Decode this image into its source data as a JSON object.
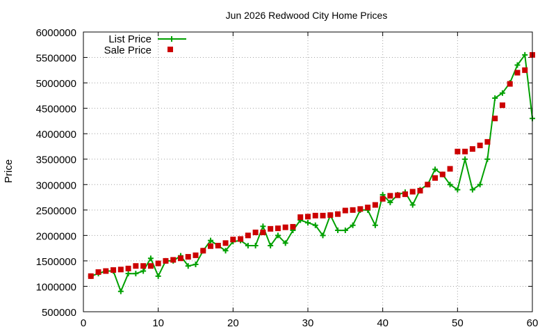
{
  "chart_data": {
    "type": "line",
    "title": "Jun 2026 Redwood City Home Prices",
    "xlabel": "",
    "ylabel": "Price",
    "xlim": [
      0,
      60
    ],
    "ylim": [
      500000,
      6000000
    ],
    "xticks": [
      0,
      10,
      20,
      30,
      40,
      50,
      60
    ],
    "yticks": [
      500000,
      1000000,
      1500000,
      2000000,
      2500000,
      3000000,
      3500000,
      4000000,
      4500000,
      5000000,
      5500000,
      6000000
    ],
    "grid": true,
    "legend_position": "top-left",
    "series": [
      {
        "name": "List Price",
        "style": "line-with-plus-markers",
        "color": "#00a000",
        "x": [
          1,
          2,
          3,
          4,
          5,
          6,
          7,
          8,
          9,
          10,
          11,
          12,
          13,
          14,
          15,
          16,
          17,
          18,
          19,
          20,
          21,
          22,
          23,
          24,
          25,
          26,
          27,
          28,
          29,
          30,
          31,
          32,
          33,
          34,
          35,
          36,
          37,
          38,
          39,
          40,
          41,
          42,
          43,
          44,
          45,
          46,
          47,
          48,
          49,
          50,
          51,
          52,
          53,
          54,
          55,
          56,
          57,
          58,
          59,
          60
        ],
        "y": [
          1200000,
          1250000,
          1300000,
          1300000,
          900000,
          1250000,
          1250000,
          1300000,
          1550000,
          1200000,
          1500000,
          1500000,
          1600000,
          1400000,
          1430000,
          1700000,
          1900000,
          1800000,
          1700000,
          1880000,
          1900000,
          1800000,
          1800000,
          2180000,
          1800000,
          2000000,
          1850000,
          2100000,
          2300000,
          2250000,
          2200000,
          2000000,
          2400000,
          2100000,
          2100000,
          2200000,
          2500000,
          2500000,
          2200000,
          2800000,
          2650000,
          2800000,
          2850000,
          2600000,
          2900000,
          3000000,
          3300000,
          3200000,
          3000000,
          2900000,
          3500000,
          2900000,
          3000000,
          3500000,
          4700000,
          4800000,
          5000000,
          5350000,
          5550000,
          4300000
        ]
      },
      {
        "name": "Sale Price",
        "style": "square-markers",
        "color": "#cc0000",
        "x": [
          1,
          2,
          3,
          4,
          5,
          6,
          7,
          8,
          9,
          10,
          11,
          12,
          13,
          14,
          15,
          16,
          17,
          18,
          19,
          20,
          21,
          22,
          23,
          24,
          25,
          26,
          27,
          28,
          29,
          30,
          31,
          32,
          33,
          34,
          35,
          36,
          37,
          38,
          39,
          40,
          41,
          42,
          43,
          44,
          45,
          46,
          47,
          48,
          49,
          50,
          51,
          52,
          53,
          54,
          55,
          56,
          57,
          58,
          59,
          60
        ],
        "y": [
          1200000,
          1280000,
          1300000,
          1320000,
          1330000,
          1350000,
          1400000,
          1400000,
          1400000,
          1450000,
          1500000,
          1520000,
          1550000,
          1580000,
          1610000,
          1700000,
          1790000,
          1800000,
          1850000,
          1920000,
          1930000,
          2000000,
          2060000,
          2060000,
          2130000,
          2140000,
          2160000,
          2170000,
          2360000,
          2370000,
          2390000,
          2390000,
          2400000,
          2420000,
          2490000,
          2500000,
          2520000,
          2550000,
          2600000,
          2720000,
          2780000,
          2790000,
          2810000,
          2860000,
          2880000,
          3000000,
          3130000,
          3200000,
          3310000,
          3650000,
          3650000,
          3700000,
          3770000,
          3840000,
          4300000,
          4560000,
          4980000,
          5200000,
          5250000,
          5550000
        ]
      }
    ]
  }
}
